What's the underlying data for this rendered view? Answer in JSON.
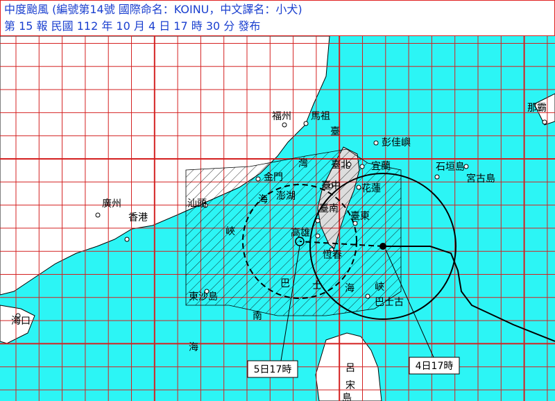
{
  "header": {
    "line1": "中度颱風 (編號第14號 國際命名：KOINU，中文譯名：小犬)",
    "line2": "第 15 報 民國 112 年 10 月 4 日 17 時 30 分 發布"
  },
  "labels": [
    {
      "text": "福州"
    },
    {
      "text": "馬祖"
    },
    {
      "text": "臺"
    },
    {
      "text": "彭佳嶼"
    },
    {
      "text": "臺北"
    },
    {
      "text": "宜蘭"
    },
    {
      "text": "石垣島"
    },
    {
      "text": "宮古島"
    },
    {
      "text": "那霸"
    },
    {
      "text": "金門"
    },
    {
      "text": "灣"
    },
    {
      "text": "澎湖"
    },
    {
      "text": "臺中"
    },
    {
      "text": "花蓮"
    },
    {
      "text": "廣州"
    },
    {
      "text": "香港"
    },
    {
      "text": "汕頭"
    },
    {
      "text": "海"
    },
    {
      "text": "臺南"
    },
    {
      "text": "臺東"
    },
    {
      "text": "高雄"
    },
    {
      "text": "峽"
    },
    {
      "text": "恆春"
    },
    {
      "text": "巴"
    },
    {
      "text": "士"
    },
    {
      "text": "海"
    },
    {
      "text": "峽"
    },
    {
      "text": "巴士古"
    },
    {
      "text": "東沙島"
    },
    {
      "text": "海口"
    },
    {
      "text": "南"
    },
    {
      "text": "海"
    },
    {
      "text": "呂"
    },
    {
      "text": "宋"
    },
    {
      "text": "島"
    }
  ],
  "callouts": [
    {
      "text": "5日17時"
    },
    {
      "text": "4日17時"
    }
  ]
}
